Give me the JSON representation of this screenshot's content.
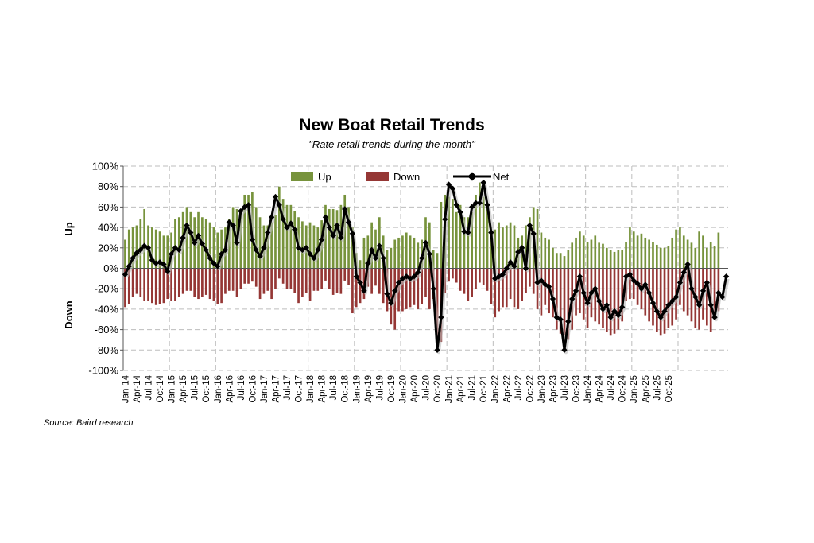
{
  "chart_data": {
    "type": "bar",
    "title": "New Boat Retail Trends",
    "subtitle": "\"Rate retail trends during the month\"",
    "source": "Source: Baird research",
    "ylabel_up": "Up",
    "ylabel_down": "Down",
    "ylim": [
      -100,
      100
    ],
    "y_ticks": [
      "100%",
      "80%",
      "60%",
      "40%",
      "20%",
      "0%",
      "-20%",
      "-40%",
      "-60%",
      "-80%",
      "-100%"
    ],
    "grid": true,
    "legend_position": "top",
    "colors": {
      "up": "#77933C",
      "down": "#953735",
      "net": "#000000"
    },
    "x_tick_labels": [
      "Jan-14",
      "Apr-14",
      "Jul-14",
      "Oct-14",
      "Jan-15",
      "Apr-15",
      "Jul-15",
      "Oct-15",
      "Jan-16",
      "Apr-16",
      "Jul-16",
      "Oct-16",
      "Jan-17",
      "Apr-17",
      "Jul-17",
      "Oct-17",
      "Jan-18",
      "Apr-18",
      "Jul-18",
      "Oct-18",
      "Jan-19",
      "Apr-19",
      "Jul-19",
      "Oct-19",
      "Jan-20",
      "Apr-20",
      "Jul-20",
      "Oct-20",
      "Jan-21",
      "Apr-21",
      "Jul-21",
      "Oct-21",
      "Jan-22",
      "Apr-22",
      "Jul-22",
      "Oct-22",
      "Jan-23",
      "Apr-23",
      "Jul-23",
      "Oct-23",
      "Jan-24",
      "Apr-24",
      "Jul-24",
      "Oct-24",
      "Jan-25",
      "Apr-25",
      "Jul-25",
      "Oct-25"
    ],
    "series": [
      {
        "name": "Up",
        "type": "bar",
        "values": [
          28,
          38,
          40,
          42,
          48,
          58,
          42,
          40,
          38,
          36,
          32,
          32,
          35,
          48,
          50,
          55,
          60,
          55,
          50,
          55,
          50,
          48,
          45,
          40,
          35,
          38,
          40,
          48,
          60,
          58,
          55,
          72,
          72,
          75,
          60,
          50,
          42,
          42,
          45,
          52,
          80,
          68,
          62,
          62,
          56,
          50,
          46,
          42,
          45,
          42,
          40,
          47,
          62,
          58,
          58,
          57,
          62,
          72,
          60,
          40,
          15,
          8,
          30,
          32,
          45,
          38,
          50,
          32,
          18,
          20,
          28,
          30,
          32,
          35,
          32,
          30,
          25,
          28,
          50,
          45,
          18,
          15,
          65,
          72,
          70,
          68,
          55,
          62,
          50,
          50,
          55,
          72,
          84,
          70,
          62,
          38,
          38,
          45,
          40,
          42,
          45,
          42,
          30,
          32,
          42,
          50,
          60,
          58,
          35,
          30,
          28,
          20,
          15,
          15,
          12,
          18,
          25,
          30,
          36,
          32,
          26,
          28,
          32,
          25,
          24,
          20,
          18,
          16,
          18,
          18,
          26,
          40,
          36,
          32,
          34,
          30,
          28,
          26,
          23,
          20,
          20,
          22,
          30,
          38,
          40,
          32,
          28,
          25,
          20,
          36,
          32,
          20,
          26,
          22,
          35
        ]
      },
      {
        "name": "Down",
        "type": "bar",
        "values": [
          -38,
          -35,
          -28,
          -25,
          -28,
          -32,
          -32,
          -34,
          -36,
          -35,
          -34,
          -30,
          -32,
          -32,
          -28,
          -25,
          -22,
          -22,
          -28,
          -30,
          -28,
          -26,
          -30,
          -32,
          -35,
          -34,
          -25,
          -22,
          -22,
          -28,
          -20,
          -15,
          -15,
          -13,
          -18,
          -30,
          -25,
          -22,
          -30,
          -20,
          -10,
          -15,
          -20,
          -20,
          -24,
          -34,
          -28,
          -24,
          -32,
          -22,
          -22,
          -20,
          -12,
          -20,
          -26,
          -24,
          -25,
          -12,
          -16,
          -44,
          -38,
          -34,
          -30,
          -18,
          -25,
          -17,
          -25,
          -34,
          -42,
          -55,
          -60,
          -42,
          -42,
          -40,
          -38,
          -36,
          -40,
          -35,
          -28,
          -40,
          -30,
          -78,
          -72,
          -24,
          -13,
          -10,
          -14,
          -22,
          -25,
          -32,
          -28,
          -20,
          -14,
          -16,
          -22,
          -35,
          -48,
          -42,
          -38,
          -38,
          -30,
          -38,
          -40,
          -32,
          -24,
          -18,
          -25,
          -40,
          -46,
          -36,
          -44,
          -48,
          -60,
          -64,
          -65,
          -70,
          -60,
          -46,
          -44,
          -50,
          -58,
          -48,
          -52,
          -55,
          -58,
          -62,
          -66,
          -64,
          -60,
          -52,
          -32,
          -30,
          -30,
          -36,
          -40,
          -46,
          -52,
          -56,
          -62,
          -66,
          -64,
          -58,
          -56,
          -50,
          -36,
          -42,
          -46,
          -52,
          -58,
          -60,
          -50,
          -56,
          -62,
          -50,
          -42
        ]
      },
      {
        "name": "Net",
        "type": "line",
        "values": [
          -6,
          2,
          10,
          15,
          18,
          22,
          20,
          8,
          5,
          6,
          4,
          -3,
          14,
          20,
          18,
          30,
          42,
          35,
          25,
          32,
          24,
          18,
          10,
          5,
          2,
          14,
          18,
          45,
          42,
          25,
          56,
          60,
          62,
          28,
          18,
          12,
          20,
          35,
          50,
          70,
          62,
          48,
          40,
          44,
          38,
          20,
          18,
          20,
          14,
          10,
          18,
          28,
          50,
          40,
          32,
          42,
          30,
          58,
          45,
          34,
          -8,
          -14,
          -22,
          5,
          18,
          10,
          22,
          10,
          -25,
          -34,
          -22,
          -14,
          -10,
          -8,
          -10,
          -8,
          -4,
          10,
          25,
          14,
          -20,
          -80,
          -48,
          48,
          82,
          78,
          62,
          55,
          36,
          35,
          60,
          64,
          64,
          84,
          62,
          35,
          -10,
          -8,
          -6,
          0,
          6,
          2,
          16,
          20,
          0,
          42,
          34,
          -14,
          -12,
          -16,
          -18,
          -30,
          -48,
          -50,
          -80,
          -52,
          -30,
          -22,
          -8,
          -24,
          -34,
          -24,
          -20,
          -32,
          -40,
          -36,
          -48,
          -42,
          -46,
          -38,
          -8,
          -6,
          -12,
          -15,
          -20,
          -16,
          -24,
          -34,
          -42,
          -48,
          -42,
          -36,
          -32,
          -28,
          -14,
          -4,
          4,
          -20,
          -28,
          -36,
          -22,
          -14,
          -36,
          -48,
          -24,
          -28,
          -8
        ]
      }
    ]
  }
}
